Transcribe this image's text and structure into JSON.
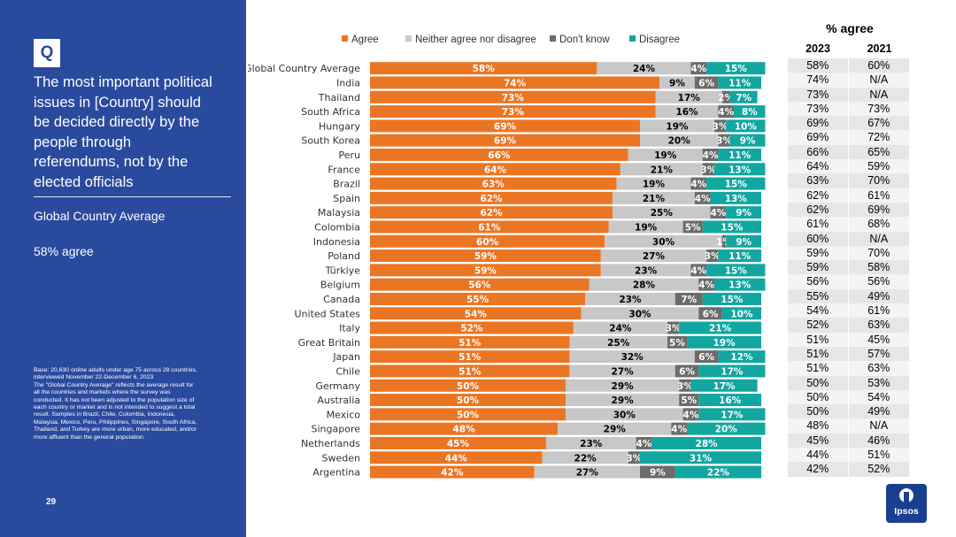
{
  "left_panel": {
    "q_letter": "Q",
    "question_lines": [
      "The most important political",
      "issues in [Country] should",
      "be decided directly by the",
      "people through",
      "referendums, not by the",
      "elected officials"
    ],
    "gca_label": "Global Country Average",
    "gca_value": "58% agree",
    "footnote_lines": [
      "Base: 20,630 online adults under age 75 across 28 countries,",
      "interviewed November 22-December 6, 2023",
      "The \"Global Country Average\" reflects the average result for",
      "all the countries and markets where the survey was",
      "conducted. It has not been adjusted to the population size of",
      "each country or market and is not intended to suggest a total",
      "result. Samples in Brazil, Chile, Colombia, Indonesia,",
      "Malaysia, Mexico, Peru, Philippines, Singapore, South Africa,",
      "Thailand, and Turkey are more urban, more educated, and/or",
      "more affluent than the general population."
    ],
    "page_number": "29"
  },
  "colors": {
    "panel": "#2a4a9e",
    "agree": "#ea7624",
    "neither": "#c8c8c8",
    "dont_know": "#6b6b6b",
    "disagree": "#12a6a1"
  },
  "chart_data": {
    "type": "bar",
    "orientation": "horizontal-stacked-100",
    "series": [
      {
        "name": "Agree",
        "color": "#ea7624",
        "values": [
          58,
          74,
          73,
          73,
          69,
          69,
          66,
          64,
          63,
          62,
          62,
          61,
          60,
          59,
          59,
          56,
          55,
          54,
          52,
          51,
          51,
          51,
          50,
          50,
          50,
          48,
          45,
          44,
          42
        ],
        "labels": [
          "58%",
          "74%",
          "73%",
          "73%",
          "69%",
          "69%",
          "66%",
          "64%",
          "63%",
          "62%",
          "62%",
          "61%",
          "60%",
          "59%",
          "59%",
          "56%",
          "55%",
          "54%",
          "52%",
          "51%",
          "51%",
          "51%",
          "50%",
          "50%",
          "50%",
          "48%",
          "45%",
          "44%",
          "42%"
        ]
      },
      {
        "name": "Neither agree nor disagree",
        "color": "#c8c8c8",
        "values": [
          24,
          9,
          17,
          16,
          19,
          20,
          19,
          21,
          19,
          21,
          25,
          19,
          30,
          27,
          23,
          28,
          23,
          30,
          24,
          25,
          32,
          27,
          29,
          29,
          30,
          29,
          23,
          22,
          27
        ],
        "labels": [
          "24%",
          "9%",
          "17%",
          "16%",
          "19%",
          "20%",
          "19%",
          "21%",
          "19%",
          "21%",
          "25%",
          "19%",
          "30%",
          "27%",
          "23%",
          "28%",
          "23%",
          "30%",
          "24%",
          "25%",
          "32%",
          "27%",
          "29%",
          "29%",
          "30%",
          "29%",
          "23%",
          "22%",
          "27%"
        ]
      },
      {
        "name": "Don't know",
        "color": "#6b6b6b",
        "values": [
          4,
          6,
          2,
          4,
          3,
          3,
          4,
          3,
          4,
          4,
          4,
          5,
          1,
          3,
          4,
          4,
          7,
          6,
          3,
          5,
          6,
          6,
          3,
          5,
          4,
          4,
          4,
          3,
          9
        ],
        "labels": [
          "4%",
          "6%",
          "2%",
          "4%",
          "3%",
          "3%",
          "4%",
          "3%",
          "4%",
          "4%",
          "4%",
          "5%",
          "1%",
          "3%",
          "4%",
          "4%",
          "7%",
          "6%",
          "3%",
          "5%",
          "6%",
          "6%",
          "3%",
          "5%",
          "4%",
          "4%",
          "4%",
          "3%",
          "9%"
        ]
      },
      {
        "name": "Disagree",
        "color": "#12a6a1",
        "values": [
          15,
          11,
          7,
          8,
          10,
          9,
          11,
          13,
          15,
          13,
          9,
          15,
          9,
          11,
          15,
          13,
          15,
          10,
          21,
          19,
          12,
          17,
          17,
          16,
          17,
          20,
          28,
          31,
          22
        ],
        "labels": [
          "15%",
          "11%",
          "7%",
          "8%",
          "10%",
          "9%",
          "11%",
          "13%",
          "15%",
          "13%",
          "9%",
          "15%",
          "9%",
          "11%",
          "15%",
          "13%",
          "15%",
          "10%",
          "21%",
          "19%",
          "12%",
          "17%",
          "17%",
          "16%",
          "17%",
          "20%",
          "28%",
          "31%",
          "22%"
        ]
      }
    ],
    "categories": [
      "Global Country Average",
      "India",
      "Thailand",
      "South Africa",
      "Hungary",
      "South Korea",
      "Peru",
      "France",
      "Brazil",
      "Spain",
      "Malaysia",
      "Colombia",
      "Indonesia",
      "Poland",
      "Türkiye",
      "Belgium",
      "Canada",
      "United States",
      "Italy",
      "Great Britain",
      "Japan",
      "Chile",
      "Germany",
      "Australia",
      "Mexico",
      "Singapore",
      "Netherlands",
      "Sweden",
      "Argentina"
    ],
    "legend_position": "top",
    "xlim": [
      0,
      100
    ]
  },
  "table": {
    "title": "% agree",
    "years": [
      "2023",
      "2021"
    ],
    "rows": [
      [
        "58%",
        "60%"
      ],
      [
        "74%",
        "N/A"
      ],
      [
        "73%",
        "N/A"
      ],
      [
        "73%",
        "73%"
      ],
      [
        "69%",
        "67%"
      ],
      [
        "69%",
        "72%"
      ],
      [
        "66%",
        "65%"
      ],
      [
        "64%",
        "59%"
      ],
      [
        "63%",
        "70%"
      ],
      [
        "62%",
        "61%"
      ],
      [
        "62%",
        "69%"
      ],
      [
        "61%",
        "68%"
      ],
      [
        "60%",
        "N/A"
      ],
      [
        "59%",
        "70%"
      ],
      [
        "59%",
        "58%"
      ],
      [
        "56%",
        "56%"
      ],
      [
        "55%",
        "49%"
      ],
      [
        "54%",
        "61%"
      ],
      [
        "52%",
        "63%"
      ],
      [
        "51%",
        "45%"
      ],
      [
        "51%",
        "57%"
      ],
      [
        "51%",
        "63%"
      ],
      [
        "50%",
        "53%"
      ],
      [
        "50%",
        "54%"
      ],
      [
        "50%",
        "49%"
      ],
      [
        "48%",
        "N/A"
      ],
      [
        "45%",
        "46%"
      ],
      [
        "44%",
        "51%"
      ],
      [
        "42%",
        "52%"
      ]
    ]
  },
  "logo": {
    "text": "Ipsos"
  }
}
